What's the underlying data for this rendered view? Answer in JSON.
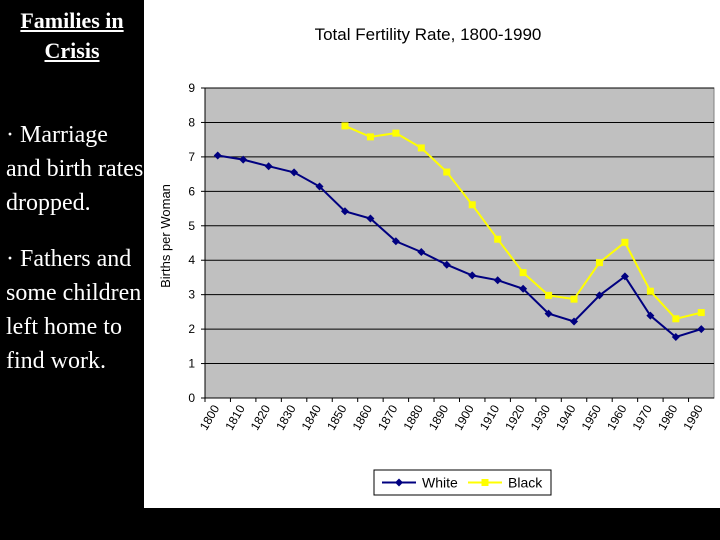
{
  "slide": {
    "title_lines": [
      "Families in",
      "Crisis"
    ],
    "bullets": [
      "· Marriage and birth rates dropped.",
      "· Fathers and some children left home to find work."
    ]
  },
  "colors": {
    "plot_background": "#c0c0c0",
    "white_series": "#000080",
    "black_series": "#ffff00"
  },
  "chart_data": {
    "type": "line",
    "title": "Total Fertility Rate, 1800-1990",
    "xlabel": "",
    "ylabel": "Births per Woman",
    "ylim": [
      0,
      9
    ],
    "yticks": [
      0,
      1,
      2,
      3,
      4,
      5,
      6,
      7,
      8,
      9
    ],
    "categories": [
      "1800",
      "1810",
      "1820",
      "1830",
      "1840",
      "1850",
      "1860",
      "1870",
      "1880",
      "1890",
      "1900",
      "1910",
      "1920",
      "1930",
      "1940",
      "1950",
      "1960",
      "1970",
      "1980",
      "1990"
    ],
    "legend_position": "bottom",
    "series": [
      {
        "name": "White",
        "marker": "diamond",
        "values": [
          7.04,
          6.92,
          6.73,
          6.55,
          6.14,
          5.42,
          5.21,
          4.55,
          4.24,
          3.87,
          3.56,
          3.42,
          3.17,
          2.45,
          2.22,
          2.98,
          3.53,
          2.39,
          1.77,
          2.0
        ]
      },
      {
        "name": "Black",
        "marker": "square",
        "values": [
          null,
          null,
          null,
          null,
          null,
          7.9,
          7.58,
          7.69,
          7.26,
          6.56,
          5.61,
          4.61,
          3.64,
          2.98,
          2.87,
          3.93,
          4.52,
          3.1,
          2.3,
          2.48
        ]
      }
    ]
  }
}
